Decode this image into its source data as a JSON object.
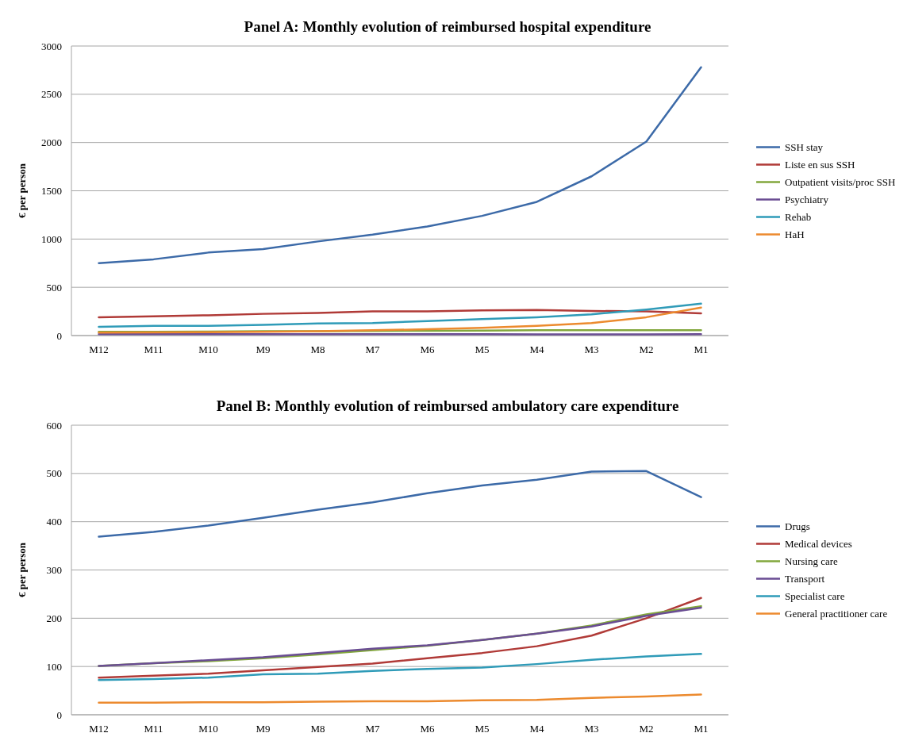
{
  "chart_data": [
    {
      "type": "line",
      "title": "Panel A: Monthly evolution of reimbursed hospital expenditure",
      "ylabel": "€ per person",
      "categories": [
        "M12",
        "M11",
        "M10",
        "M9",
        "M8",
        "M7",
        "M6",
        "M5",
        "M4",
        "M3",
        "M2",
        "M1"
      ],
      "ylim": [
        0,
        3000
      ],
      "yticks": [
        0,
        500,
        1000,
        1500,
        2000,
        2500,
        3000
      ],
      "grid": "y",
      "legend": "right",
      "marker": "none",
      "series": [
        {
          "name": "SSH stay",
          "color": "#3c6aa8",
          "values": [
            750,
            790,
            860,
            895,
            975,
            1045,
            1130,
            1240,
            1385,
            1650,
            2010,
            2780
          ]
        },
        {
          "name": "Liste en sus SSH",
          "color": "#b03a37",
          "values": [
            190,
            200,
            210,
            225,
            235,
            250,
            250,
            260,
            265,
            255,
            250,
            230
          ]
        },
        {
          "name": "Outpatient visits/proc SSH",
          "color": "#82a73c",
          "values": [
            40,
            40,
            42,
            45,
            45,
            48,
            50,
            52,
            55,
            55,
            55,
            55
          ]
        },
        {
          "name": "Psychiatry",
          "color": "#6a4d93",
          "values": [
            15,
            15,
            15,
            15,
            15,
            15,
            15,
            15,
            12,
            12,
            12,
            15
          ]
        },
        {
          "name": "Rehab",
          "color": "#2f9bb8",
          "values": [
            90,
            100,
            100,
            110,
            125,
            130,
            150,
            170,
            190,
            220,
            270,
            330
          ]
        },
        {
          "name": "HaH",
          "color": "#ec8a2e",
          "values": [
            30,
            33,
            35,
            40,
            45,
            55,
            65,
            80,
            100,
            130,
            190,
            290
          ]
        }
      ]
    },
    {
      "type": "line",
      "title": "Panel B: Monthly evolution of reimbursed ambulatory care expenditure",
      "ylabel": "€ per person",
      "categories": [
        "M12",
        "M11",
        "M10",
        "M9",
        "M8",
        "M7",
        "M6",
        "M5",
        "M4",
        "M3",
        "M2",
        "M1"
      ],
      "ylim": [
        0,
        600
      ],
      "yticks": [
        0,
        100,
        200,
        300,
        400,
        500,
        600
      ],
      "grid": "y",
      "legend": "right",
      "marker": "none",
      "series": [
        {
          "name": "Drugs",
          "color": "#3c6aa8",
          "values": [
            369,
            379,
            392,
            408,
            425,
            440,
            459,
            475,
            487,
            504,
            505,
            451
          ]
        },
        {
          "name": "Medical devices",
          "color": "#b03a37",
          "values": [
            77,
            81,
            85,
            92,
            99,
            106,
            117,
            128,
            142,
            164,
            200,
            242
          ]
        },
        {
          "name": "Nursing care",
          "color": "#82a73c",
          "values": [
            101,
            107,
            111,
            117,
            125,
            134,
            143,
            155,
            168,
            185,
            208,
            225
          ]
        },
        {
          "name": "Transport",
          "color": "#6a4d93",
          "values": [
            101,
            107,
            113,
            119,
            128,
            137,
            144,
            155,
            168,
            183,
            205,
            222
          ]
        },
        {
          "name": "Specialist care",
          "color": "#2f9bb8",
          "values": [
            72,
            74,
            77,
            84,
            85,
            91,
            95,
            98,
            105,
            114,
            121,
            126
          ]
        },
        {
          "name": "General practitioner care",
          "color": "#ec8a2e",
          "values": [
            25,
            25,
            26,
            26,
            27,
            28,
            28,
            30,
            31,
            35,
            38,
            42
          ]
        }
      ]
    }
  ]
}
